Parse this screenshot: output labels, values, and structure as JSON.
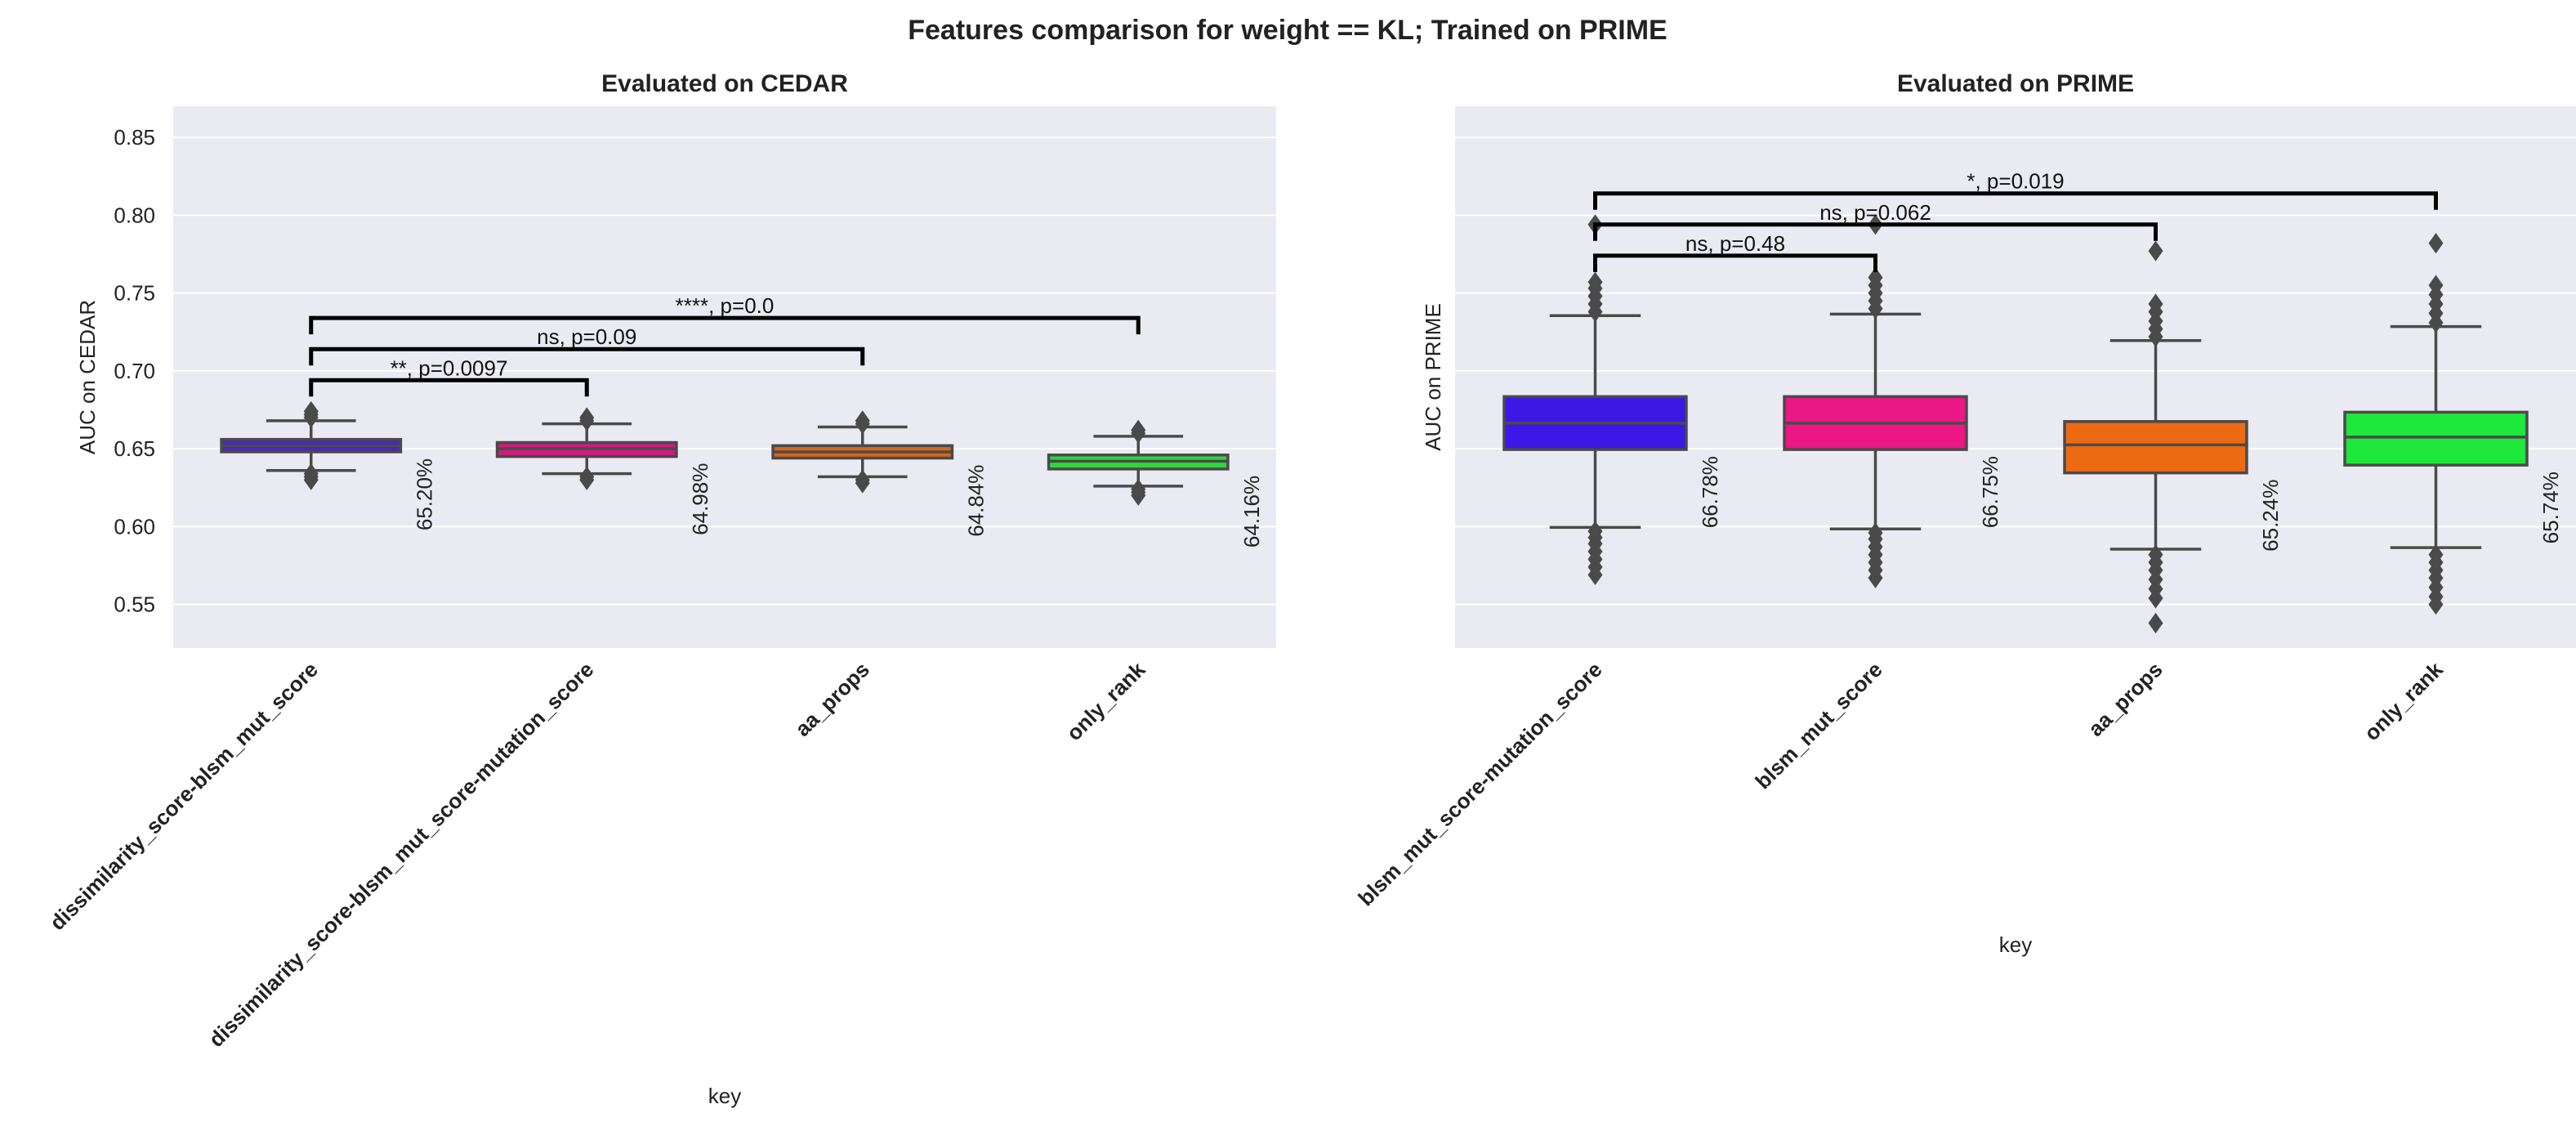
{
  "figure": {
    "title": "Features comparison for weight == KL; Trained on PRIME",
    "background": "#ffffff",
    "panel_background": "#eaeaf2",
    "grid_color": "#ffffff",
    "bracket_color": "#000000",
    "box_edge_color": "#4a4a4a"
  },
  "chart_data": [
    {
      "type": "box",
      "title": "Evaluated on CEDAR",
      "xlabel": "key",
      "ylabel": "AUC on CEDAR",
      "ylim": [
        0.522,
        0.87
      ],
      "yticks": [
        0.55,
        0.6,
        0.65,
        0.7,
        0.75,
        0.8,
        0.85
      ],
      "ytick_labels": [
        "0.55",
        "0.60",
        "0.65",
        "0.70",
        "0.75",
        "0.80",
        "0.85"
      ],
      "grid": true,
      "categories": [
        "dissimilarity_score-blsm_mut_score",
        "dissimilarity_score-blsm_mut_score-mutation_score",
        "aa_props",
        "only_rank"
      ],
      "boxes": [
        {
          "color": "#4a24c9",
          "q1": 0.648,
          "median": 0.652,
          "q3": 0.656,
          "whislo": 0.636,
          "whishi": 0.668,
          "fliers": [
            0.634,
            0.632,
            0.63,
            0.67,
            0.672,
            0.674
          ],
          "label": "65.20%"
        },
        {
          "color": "#cf1a7e",
          "q1": 0.645,
          "median": 0.65,
          "q3": 0.654,
          "whislo": 0.634,
          "whishi": 0.666,
          "fliers": [
            0.632,
            0.63,
            0.668,
            0.67
          ],
          "label": "64.98%"
        },
        {
          "color": "#d9661a",
          "q1": 0.644,
          "median": 0.648,
          "q3": 0.652,
          "whislo": 0.632,
          "whishi": 0.664,
          "fliers": [
            0.63,
            0.628,
            0.666,
            0.668
          ],
          "label": "64.84%"
        },
        {
          "color": "#2ed63c",
          "q1": 0.637,
          "median": 0.642,
          "q3": 0.646,
          "whislo": 0.626,
          "whishi": 0.658,
          "fliers": [
            0.624,
            0.622,
            0.62,
            0.66,
            0.662
          ],
          "label": "64.16%"
        }
      ],
      "annotations": [
        {
          "from": 0,
          "to": 1,
          "y": 0.694,
          "text": "**, p=0.0097"
        },
        {
          "from": 0,
          "to": 2,
          "y": 0.714,
          "text": "ns, p=0.09"
        },
        {
          "from": 0,
          "to": 3,
          "y": 0.734,
          "text": "****, p=0.0"
        }
      ]
    },
    {
      "type": "box",
      "title": "Evaluated on PRIME",
      "xlabel": "key",
      "ylabel": "AUC on PRIME",
      "ylim": [
        0.522,
        0.87
      ],
      "yticks": [
        0.55,
        0.6,
        0.65,
        0.7,
        0.75,
        0.8,
        0.85
      ],
      "ytick_labels": [],
      "grid": true,
      "categories": [
        "blsm_mut_score-mutation_score",
        "blsm_mut_score",
        "aa_props",
        "only_rank"
      ],
      "boxes": [
        {
          "color": "#3c18e6",
          "q1": 0.6495,
          "median": 0.6665,
          "q3": 0.6835,
          "whislo": 0.5995,
          "whishi": 0.7355,
          "fliers": [
            0.597,
            0.593,
            0.589,
            0.584,
            0.579,
            0.574,
            0.569,
            0.738,
            0.743,
            0.748,
            0.753,
            0.757,
            0.794
          ],
          "label": "66.78%"
        },
        {
          "color": "#ea1785",
          "q1": 0.6495,
          "median": 0.6665,
          "q3": 0.6835,
          "whislo": 0.5985,
          "whishi": 0.7365,
          "fliers": [
            0.596,
            0.592,
            0.587,
            0.582,
            0.577,
            0.572,
            0.567,
            0.74,
            0.745,
            0.75,
            0.755,
            0.76,
            0.794
          ],
          "label": "66.75%"
        },
        {
          "color": "#ec6a12",
          "q1": 0.6345,
          "median": 0.6525,
          "q3": 0.6675,
          "whislo": 0.5855,
          "whishi": 0.7195,
          "fliers": [
            0.582,
            0.577,
            0.572,
            0.566,
            0.56,
            0.554,
            0.538,
            0.722,
            0.727,
            0.732,
            0.738,
            0.743,
            0.777
          ],
          "label": "65.24%"
        },
        {
          "color": "#1ee839",
          "q1": 0.6395,
          "median": 0.6575,
          "q3": 0.6735,
          "whislo": 0.5865,
          "whishi": 0.7285,
          "fliers": [
            0.582,
            0.577,
            0.572,
            0.567,
            0.561,
            0.555,
            0.55,
            0.731,
            0.737,
            0.743,
            0.749,
            0.755,
            0.782
          ],
          "label": "65.74%"
        }
      ],
      "annotations": [
        {
          "from": 0,
          "to": 1,
          "y": 0.774,
          "text": "ns, p=0.48"
        },
        {
          "from": 0,
          "to": 2,
          "y": 0.794,
          "text": "ns, p=0.062"
        },
        {
          "from": 0,
          "to": 3,
          "y": 0.814,
          "text": "*, p=0.019"
        }
      ]
    }
  ]
}
